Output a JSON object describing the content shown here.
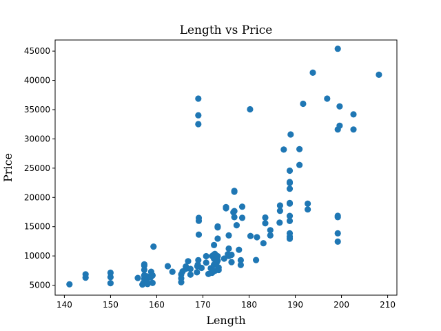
{
  "chart_data": {
    "type": "scatter",
    "title": "Length vs Price",
    "xlabel": "Length",
    "ylabel": "Price",
    "xlim": [
      138,
      212
    ],
    "ylim": [
      3300,
      46900
    ],
    "xticks": [
      140,
      150,
      160,
      170,
      180,
      190,
      200,
      210
    ],
    "yticks": [
      5000,
      10000,
      15000,
      20000,
      25000,
      30000,
      35000,
      40000,
      45000
    ],
    "grid": false,
    "marker_color": "#1f77b4",
    "points": [
      [
        141.1,
        5151
      ],
      [
        144.6,
        6295
      ],
      [
        144.6,
        6855
      ],
      [
        150.0,
        5348
      ],
      [
        150.0,
        6377
      ],
      [
        150.0,
        7129
      ],
      [
        155.9,
        6229
      ],
      [
        156.9,
        5118
      ],
      [
        157.1,
        5399
      ],
      [
        157.3,
        6095
      ],
      [
        157.3,
        6649
      ],
      [
        157.3,
        6692
      ],
      [
        157.3,
        7609
      ],
      [
        157.3,
        8358
      ],
      [
        157.3,
        8558
      ],
      [
        157.9,
        5572
      ],
      [
        157.9,
        6488
      ],
      [
        158.0,
        5195
      ],
      [
        158.7,
        6338
      ],
      [
        158.8,
        7299
      ],
      [
        159.1,
        5389
      ],
      [
        159.1,
        6669
      ],
      [
        159.3,
        11595
      ],
      [
        162.4,
        8249
      ],
      [
        163.4,
        7295
      ],
      [
        165.3,
        5499
      ],
      [
        165.3,
        6189
      ],
      [
        165.3,
        6849
      ],
      [
        165.6,
        7349
      ],
      [
        166.3,
        7799
      ],
      [
        166.3,
        8195
      ],
      [
        166.8,
        9095
      ],
      [
        167.3,
        6795
      ],
      [
        167.3,
        7775
      ],
      [
        168.7,
        7198
      ],
      [
        168.8,
        8238
      ],
      [
        168.9,
        8495
      ],
      [
        169.0,
        9279
      ],
      [
        169.0,
        36880
      ],
      [
        169.0,
        34028
      ],
      [
        169.0,
        32528
      ],
      [
        169.1,
        13645
      ],
      [
        169.1,
        16500
      ],
      [
        169.1,
        15998
      ],
      [
        169.7,
        7957
      ],
      [
        170.7,
        8845
      ],
      [
        170.7,
        9960
      ],
      [
        171.2,
        6918
      ],
      [
        171.7,
        7898
      ],
      [
        172.0,
        7129
      ],
      [
        172.0,
        9989
      ],
      [
        172.4,
        8495
      ],
      [
        172.4,
        9495
      ],
      [
        172.4,
        10245
      ],
      [
        172.4,
        11850
      ],
      [
        172.6,
        7463
      ],
      [
        172.6,
        10345
      ],
      [
        173.0,
        8921
      ],
      [
        173.2,
        9233
      ],
      [
        173.2,
        9959
      ],
      [
        173.2,
        12964
      ],
      [
        173.2,
        14869
      ],
      [
        173.2,
        15040
      ],
      [
        173.4,
        7603
      ],
      [
        173.4,
        8013
      ],
      [
        174.6,
        9549
      ],
      [
        175.0,
        18150
      ],
      [
        175.0,
        18344
      ],
      [
        175.4,
        10295
      ],
      [
        175.6,
        9988
      ],
      [
        175.6,
        11259
      ],
      [
        175.6,
        13499
      ],
      [
        176.2,
        8948
      ],
      [
        176.2,
        10198
      ],
      [
        176.6,
        17450
      ],
      [
        176.8,
        17669
      ],
      [
        176.8,
        16630
      ],
      [
        176.8,
        20970
      ],
      [
        176.8,
        21105
      ],
      [
        177.3,
        15250
      ],
      [
        177.8,
        11048
      ],
      [
        178.2,
        9258
      ],
      [
        178.2,
        8449
      ],
      [
        178.5,
        16515
      ],
      [
        178.5,
        18420
      ],
      [
        180.2,
        35056
      ],
      [
        180.3,
        13415
      ],
      [
        181.5,
        9295
      ],
      [
        181.7,
        13200
      ],
      [
        183.1,
        12170
      ],
      [
        183.5,
        15580
      ],
      [
        183.5,
        16558
      ],
      [
        184.6,
        14399
      ],
      [
        184.6,
        13499
      ],
      [
        186.6,
        15690
      ],
      [
        186.7,
        17710
      ],
      [
        186.7,
        18620
      ],
      [
        187.5,
        28176
      ],
      [
        188.8,
        13860
      ],
      [
        188.8,
        13295
      ],
      [
        188.8,
        12945
      ],
      [
        188.8,
        15985
      ],
      [
        188.8,
        16845
      ],
      [
        188.8,
        19045
      ],
      [
        188.8,
        18950
      ],
      [
        188.8,
        21485
      ],
      [
        188.8,
        22470
      ],
      [
        188.8,
        22625
      ],
      [
        188.8,
        24565
      ],
      [
        189.0,
        30760
      ],
      [
        190.9,
        28248
      ],
      [
        190.9,
        25552
      ],
      [
        191.7,
        36000
      ],
      [
        192.7,
        17950
      ],
      [
        192.7,
        18920
      ],
      [
        193.8,
        41315
      ],
      [
        196.9,
        36880
      ],
      [
        199.2,
        31600
      ],
      [
        199.2,
        12440
      ],
      [
        199.2,
        13860
      ],
      [
        199.2,
        16850
      ],
      [
        199.2,
        16630
      ],
      [
        199.2,
        45400
      ],
      [
        199.6,
        32250
      ],
      [
        199.6,
        35550
      ],
      [
        202.6,
        31600
      ],
      [
        202.6,
        34184
      ],
      [
        208.1,
        40960
      ]
    ]
  }
}
